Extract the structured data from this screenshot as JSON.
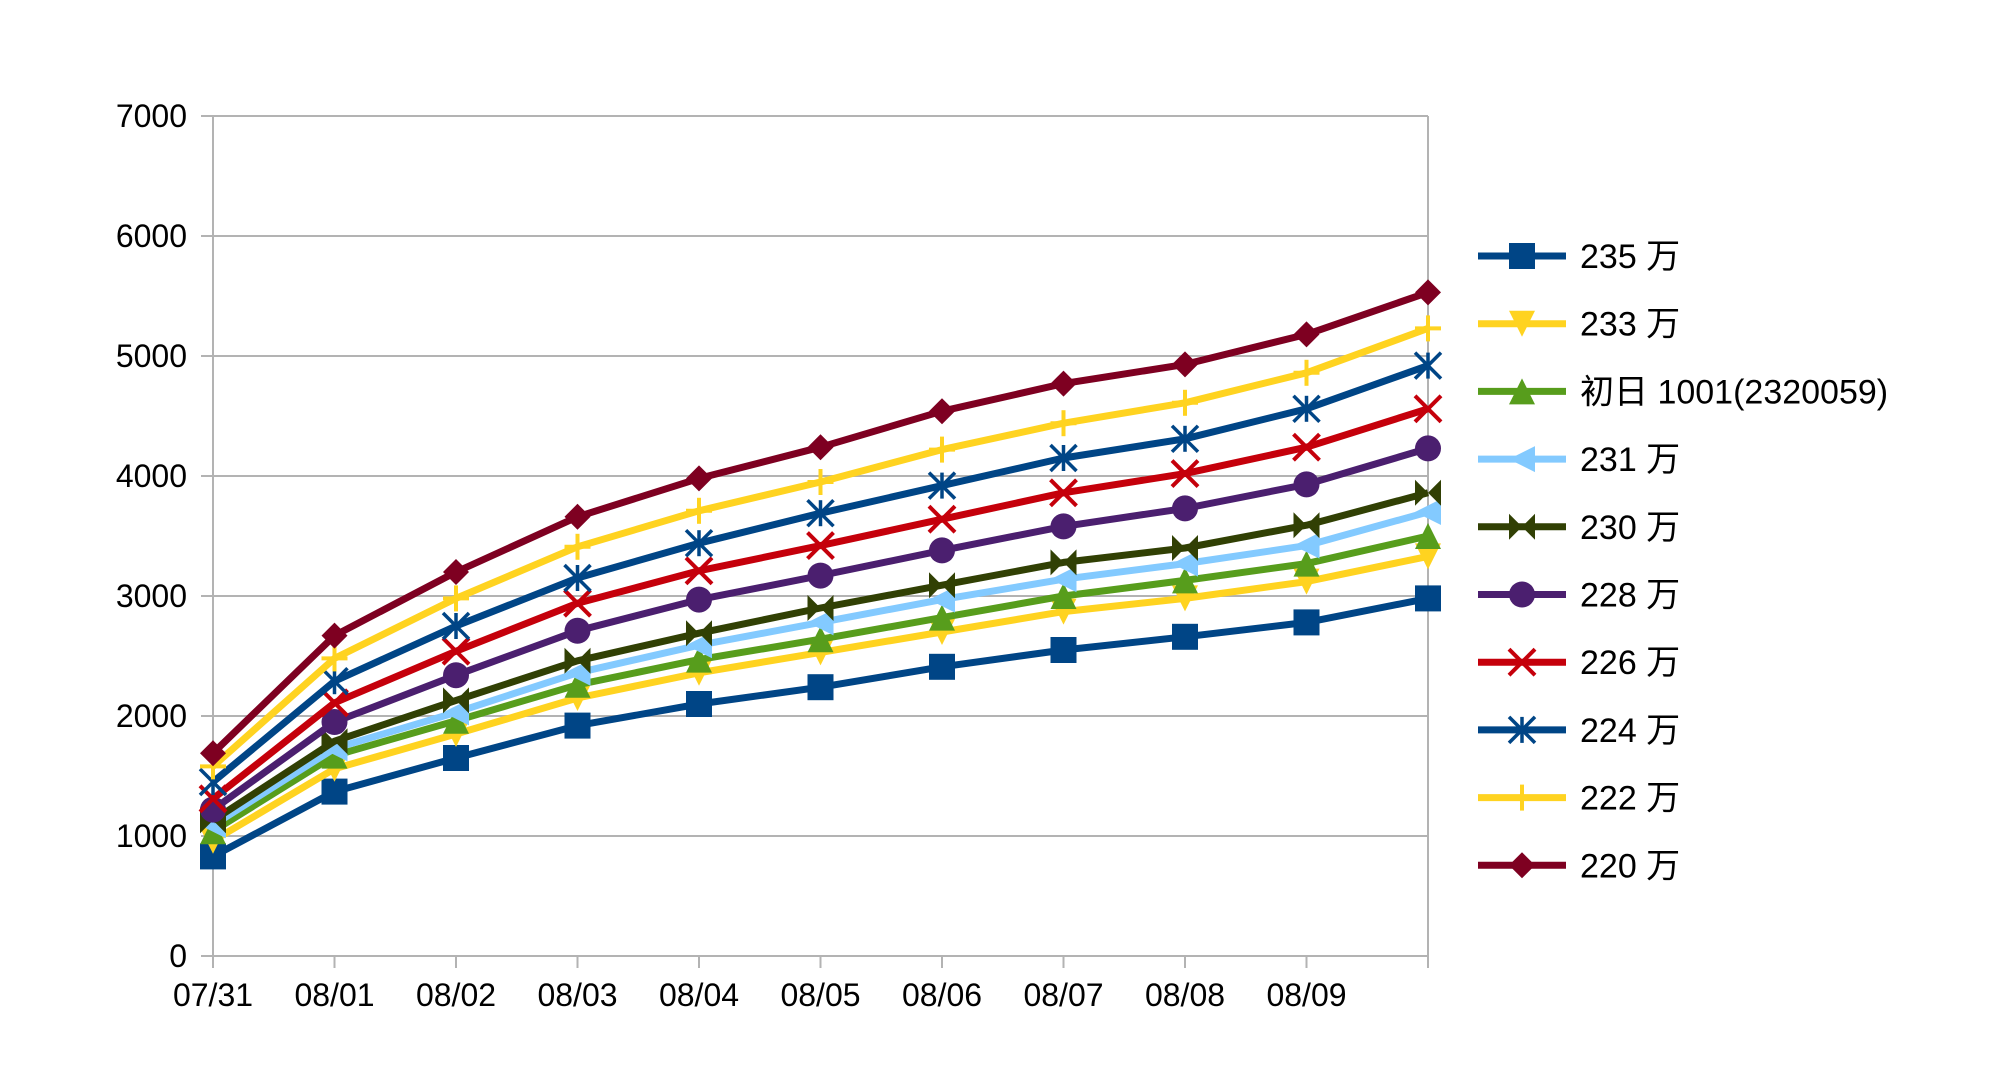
{
  "chart_data": {
    "type": "line",
    "title": "",
    "xlabel": "",
    "ylabel": "",
    "ylim": [
      0,
      7000
    ],
    "yticks": [
      0,
      1000,
      2000,
      3000,
      4000,
      5000,
      6000,
      7000
    ],
    "ytick_labels": [
      "0",
      "1000",
      "2000",
      "3000",
      "4000",
      "5000",
      "6000",
      "7000"
    ],
    "categories": [
      "07/31",
      "08/01",
      "08/02",
      "08/03",
      "08/04",
      "08/05",
      "08/06",
      "08/07",
      "08/08",
      "08/09",
      ""
    ],
    "grid": "horizontal",
    "legend_position": "right",
    "series": [
      {
        "name": "235 万",
        "color": "#004586",
        "marker": "square",
        "values": [
          830,
          1370,
          1650,
          1920,
          2100,
          2240,
          2410,
          2550,
          2660,
          2780,
          2980
        ]
      },
      {
        "name": "233 万",
        "color": "#ffd320",
        "marker": "triangle-down",
        "values": [
          960,
          1560,
          1850,
          2150,
          2360,
          2530,
          2700,
          2870,
          2980,
          3120,
          3330
        ]
      },
      {
        "name": "初日 1001(2320059)",
        "color": "#579d1c",
        "marker": "triangle-up",
        "values": [
          1040,
          1670,
          1960,
          2260,
          2470,
          2640,
          2820,
          3000,
          3130,
          3270,
          3500
        ]
      },
      {
        "name": "231 万",
        "color": "#83caff",
        "marker": "triangle-left",
        "values": [
          1090,
          1730,
          2030,
          2360,
          2590,
          2780,
          2970,
          3140,
          3270,
          3420,
          3700
        ]
      },
      {
        "name": "230 万",
        "color": "#314004",
        "marker": "bowtie",
        "values": [
          1130,
          1790,
          2130,
          2460,
          2690,
          2900,
          3090,
          3280,
          3400,
          3590,
          3860
        ]
      },
      {
        "name": "228 万",
        "color": "#4b1f6f",
        "marker": "circle",
        "values": [
          1220,
          1950,
          2340,
          2710,
          2970,
          3170,
          3380,
          3580,
          3730,
          3930,
          4230
        ]
      },
      {
        "name": "226 万",
        "color": "#c5000b",
        "marker": "x",
        "values": [
          1310,
          2110,
          2540,
          2940,
          3210,
          3420,
          3640,
          3860,
          4020,
          4240,
          4560
        ]
      },
      {
        "name": "224 万",
        "color": "#004586",
        "marker": "asterisk",
        "values": [
          1450,
          2290,
          2750,
          3150,
          3440,
          3690,
          3920,
          4150,
          4310,
          4560,
          4920
        ]
      },
      {
        "name": "222 万",
        "color": "#ffd320",
        "marker": "plus",
        "values": [
          1580,
          2480,
          2980,
          3410,
          3710,
          3950,
          4220,
          4440,
          4610,
          4860,
          5230
        ]
      },
      {
        "name": "220 万",
        "color": "#7e0021",
        "marker": "diamond",
        "values": [
          1690,
          2670,
          3200,
          3660,
          3980,
          4240,
          4540,
          4770,
          4930,
          5180,
          5530
        ]
      }
    ]
  }
}
